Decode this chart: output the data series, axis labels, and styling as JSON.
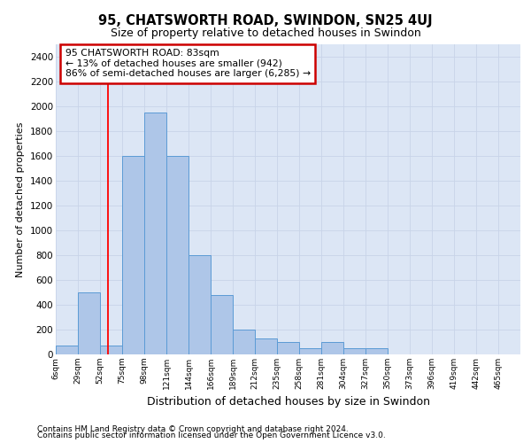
{
  "title1": "95, CHATSWORTH ROAD, SWINDON, SN25 4UJ",
  "title2": "Size of property relative to detached houses in Swindon",
  "xlabel": "Distribution of detached houses by size in Swindon",
  "ylabel": "Number of detached properties",
  "bin_labels": [
    "6sqm",
    "29sqm",
    "52sqm",
    "75sqm",
    "98sqm",
    "121sqm",
    "144sqm",
    "166sqm",
    "189sqm",
    "212sqm",
    "235sqm",
    "258sqm",
    "281sqm",
    "304sqm",
    "327sqm",
    "350sqm",
    "373sqm",
    "396sqm",
    "419sqm",
    "442sqm",
    "465sqm"
  ],
  "bar_heights": [
    75,
    500,
    75,
    1600,
    1950,
    1600,
    800,
    480,
    200,
    130,
    100,
    50,
    100,
    50,
    50,
    0,
    0,
    0,
    0,
    0
  ],
  "bar_color": "#aec6e8",
  "bar_edge_color": "#5b9bd5",
  "red_line_x": 2.35,
  "annotation_text": "95 CHATSWORTH ROAD: 83sqm\n← 13% of detached houses are smaller (942)\n86% of semi-detached houses are larger (6,285) →",
  "annotation_box_color": "#ffffff",
  "annotation_box_edge": "#cc0000",
  "ylim": [
    0,
    2500
  ],
  "yticks": [
    0,
    200,
    400,
    600,
    800,
    1000,
    1200,
    1400,
    1600,
    1800,
    2000,
    2200,
    2400
  ],
  "footer1": "Contains HM Land Registry data © Crown copyright and database right 2024.",
  "footer2": "Contains public sector information licensed under the Open Government Licence v3.0.",
  "bg_color": "#ffffff",
  "grid_color": "#c8d4e8",
  "facecolor": "#dce6f5"
}
